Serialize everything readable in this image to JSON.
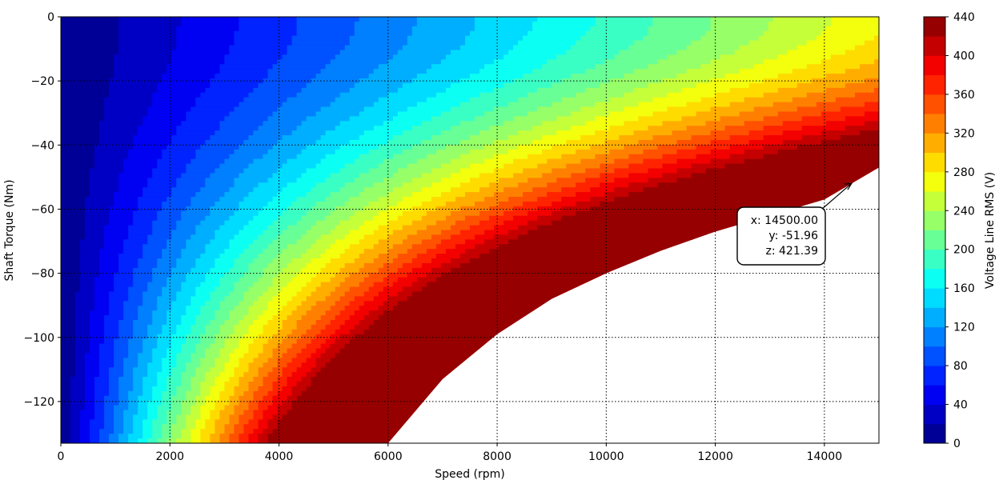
{
  "chart_data": {
    "type": "heatmap",
    "xlabel": "Speed  (rpm)",
    "ylabel": "Shaft Torque  (Nm)",
    "xlim": [
      0,
      15000
    ],
    "ylim": [
      -133,
      0
    ],
    "xticks": [
      0,
      2000,
      4000,
      6000,
      8000,
      10000,
      12000,
      14000
    ],
    "xtick_labels": [
      "0",
      "2000",
      "4000",
      "6000",
      "8000",
      "10000",
      "12000",
      "14000"
    ],
    "yticks": [
      0,
      -20,
      -40,
      -60,
      -80,
      -100,
      -120
    ],
    "ytick_labels": [
      "0",
      "−20",
      "−40",
      "−60",
      "−80",
      "−100",
      "−120"
    ],
    "grid": true,
    "colormap": "jet",
    "colorbar": {
      "label": "Voltage Line RMS (V)",
      "range": [
        0,
        440
      ],
      "levels": [
        0,
        20,
        40,
        60,
        80,
        100,
        120,
        140,
        160,
        180,
        200,
        220,
        240,
        260,
        280,
        300,
        320,
        340,
        360,
        380,
        400,
        420,
        440
      ],
      "ticks": [
        0,
        40,
        80,
        120,
        160,
        200,
        240,
        280,
        320,
        360,
        400,
        440
      ],
      "tick_labels": [
        "0",
        "40",
        "80",
        "120",
        "160",
        "200",
        "240",
        "280",
        "320",
        "360",
        "400",
        "440"
      ]
    },
    "boundary": {
      "x": [
        6000,
        7000,
        8000,
        9000,
        10000,
        11000,
        12000,
        13000,
        14000,
        15000
      ],
      "y": [
        -133,
        -113,
        -99,
        -88,
        -80,
        -73,
        -67,
        -62,
        -57,
        -47
      ]
    },
    "annotation": {
      "x_value": 14500,
      "y_value": -51.96,
      "z_value": 421.39,
      "lines": [
        "x: 14500.00",
        "y: -51.96",
        "z: 421.39"
      ]
    }
  }
}
